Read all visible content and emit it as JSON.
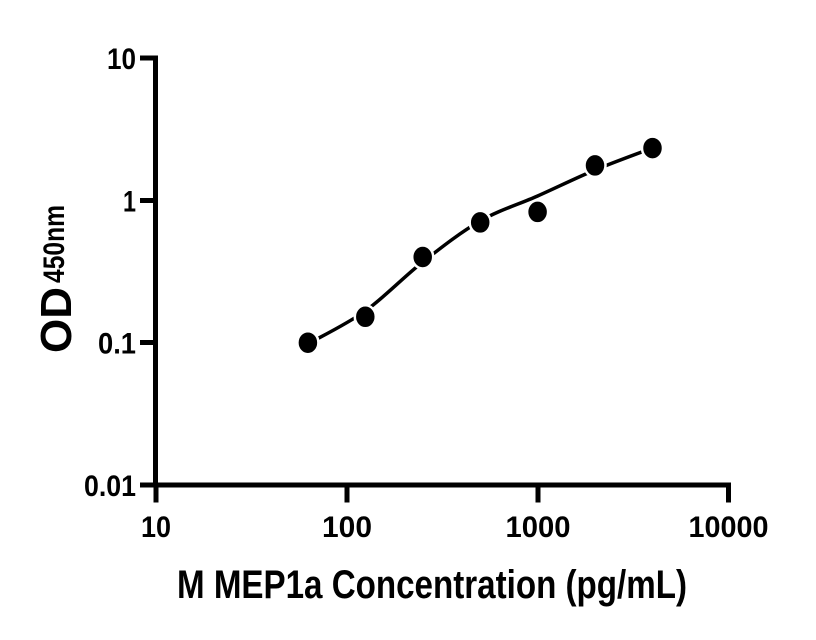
{
  "chart_data": {
    "type": "scatter",
    "title": "",
    "xlabel": "M MEP1a Concentration (pg/mL)",
    "ylabel_main": "OD",
    "ylabel_subscript": "450nm",
    "x_scale": "log",
    "y_scale": "log",
    "xlim": [
      10,
      10000
    ],
    "ylim": [
      0.01,
      10
    ],
    "x_ticks": [
      10,
      100,
      1000,
      10000
    ],
    "y_ticks": [
      10,
      1,
      0.1,
      0.01
    ],
    "x_tick_labels": [
      "10",
      "100",
      "1000",
      "10000"
    ],
    "y_tick_labels": [
      "10",
      "1",
      "0.1",
      "0.01"
    ],
    "grid": false,
    "legend": null,
    "series": [
      {
        "name": "standard-points",
        "marker": "filled-circle",
        "color": "#000000",
        "x": [
          62.5,
          125,
          250,
          500,
          1000,
          2000,
          4000
        ],
        "y": [
          0.1,
          0.152,
          0.4,
          0.7,
          0.83,
          1.76,
          2.33
        ]
      }
    ],
    "fit_curve": {
      "name": "fitted-standard-curve",
      "color": "#000000",
      "x": [
        62.5,
        125,
        250,
        500,
        1000,
        2000,
        4000
      ],
      "y": [
        0.098,
        0.167,
        0.369,
        0.716,
        1.073,
        1.634,
        2.333
      ]
    }
  },
  "colors": {
    "ink": "#000000",
    "background": "#ffffff"
  }
}
